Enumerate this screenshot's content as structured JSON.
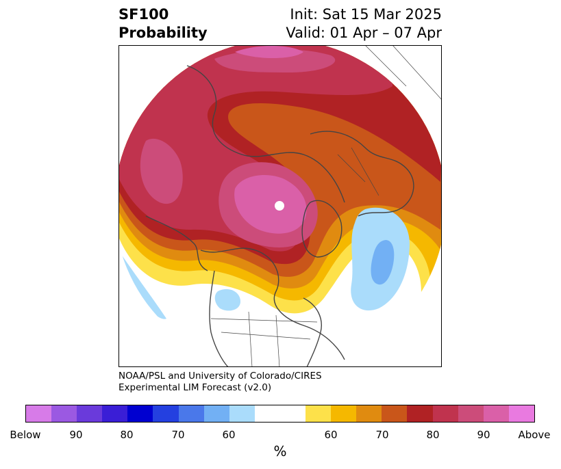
{
  "header": {
    "title_line1": "SF100",
    "title_line2": "Probability",
    "init_line": "Init: Sat 15 Mar 2025",
    "valid_line": "Valid: 01 Apr – 07 Apr"
  },
  "credit": {
    "line1": "NOAA/PSL and University of Colorado/CIRES",
    "line2": "Experimental LIM Forecast (v2.0)"
  },
  "map": {
    "projection": "north-polar-stereographic",
    "background": "#ffffff",
    "coastline_color": "#444444"
  },
  "colorbar": {
    "units": "%",
    "below_colors": [
      "#d77be8",
      "#9b59e2",
      "#6a3adb",
      "#3a1ed6",
      "#0000d0",
      "#2440e0",
      "#4a78ea",
      "#72b0f4",
      "#aadcfb"
    ],
    "neutral_color": "#ffffff",
    "above_colors": [
      "#fde14a",
      "#f5b800",
      "#e08b10",
      "#c9561a",
      "#b02224",
      "#c0334e",
      "#cc4c7a",
      "#da60a8",
      "#e97ae0"
    ],
    "tick_labels": [
      "Below",
      "90",
      "80",
      "70",
      "60",
      "60",
      "70",
      "80",
      "90",
      "Above"
    ]
  }
}
